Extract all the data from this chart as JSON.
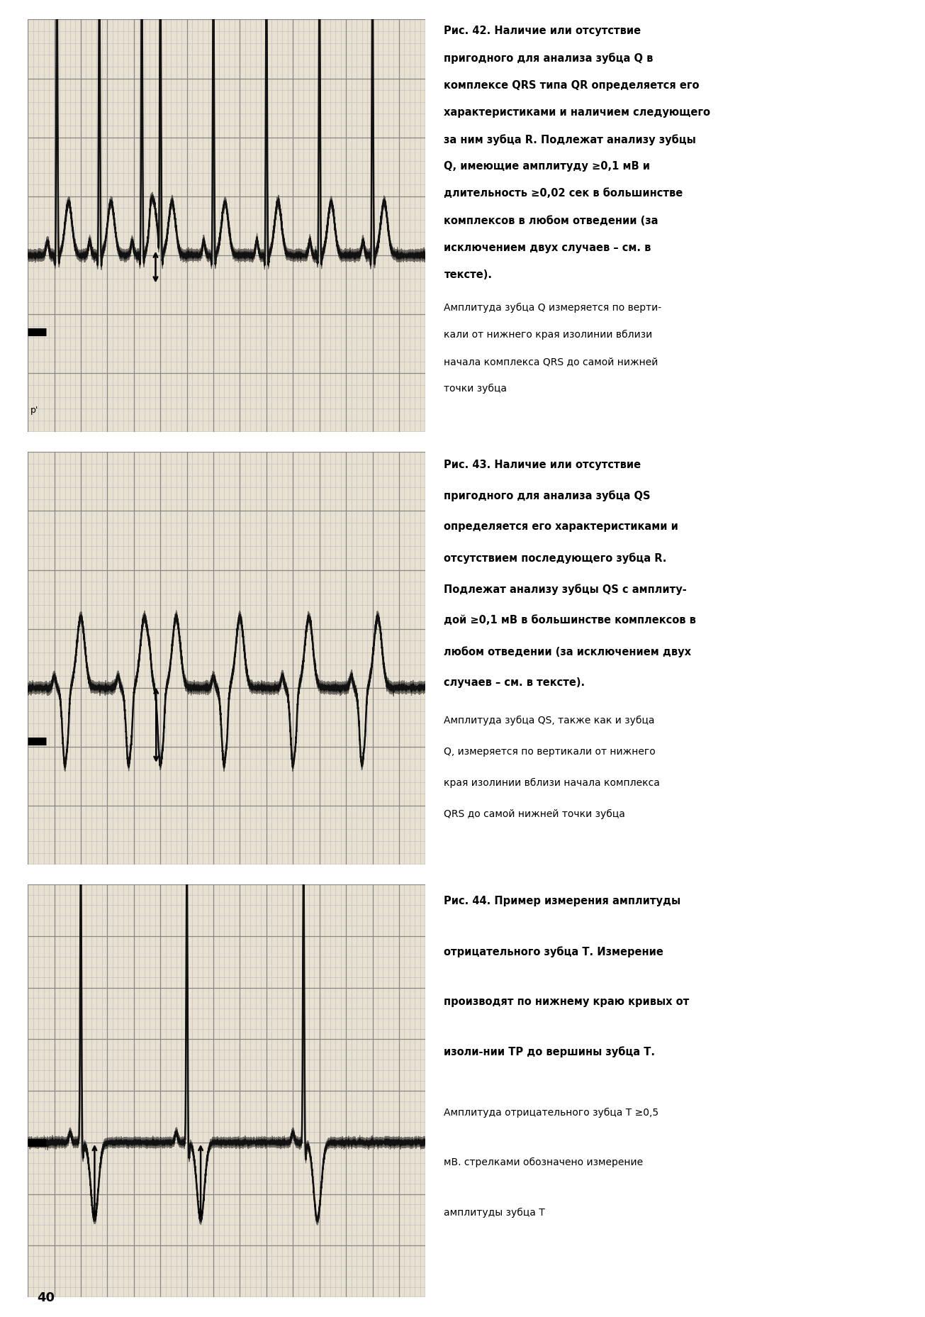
{
  "page_background": "#ffffff",
  "ecg_bg": "#e8e0d0",
  "grid_major_color": "#888888",
  "grid_minor_color": "#bbbbbb",
  "ecg_line_color": "#000000",
  "page_number": "40",
  "fig42_bold": "Рис. 42. Наличие или отсутствие пригодного для анализа зубца Q в комплексе QRS типа QR определяется его характеристиками и наличием следующего за ним зубца R. Подлежат анализу зубцы Q, имеющие амплитуду ≥0,1 мВ и длительность ≥0,02 сек в большинстве комплексов в любом отведении (за исключением двух случаев – см. в тексте).",
  "fig42_normal": "Амплитуда зубца Q измеряется по верти-кали от нижнего края изолинии вблизи начала комплекса QRS до самой нижней точки зубца",
  "fig43_bold": "Рис. 43. Наличие или отсутствие пригодного для анализа зубца QS определяется его характеристиками и отсутствием последующего зубца R. Подлежат анализу зубцы QS с амплиту-дой ≥0,1 мВ в большинстве комплексов в любом отведении (за исключением двух случаев – см. в тексте).",
  "fig43_normal": "Амплитуда зубца QS, также как и зубца Q, измеряется по вертикали от нижнего края изолинии вблизи начала комплекса QRS до самой нижней точки зубца",
  "fig44_bold": "Рис. 44. Пример измерения амплитуды отрицательного зубца Т. Измерение производят по нижнему краю кривых от изоли-нии ТР до вершины зубца Т.",
  "fig44_normal": "Амплитуда отрицательного зубца Т ≥0,5 мВ. стрелками обозначено измерение амплитуды зубца Т"
}
